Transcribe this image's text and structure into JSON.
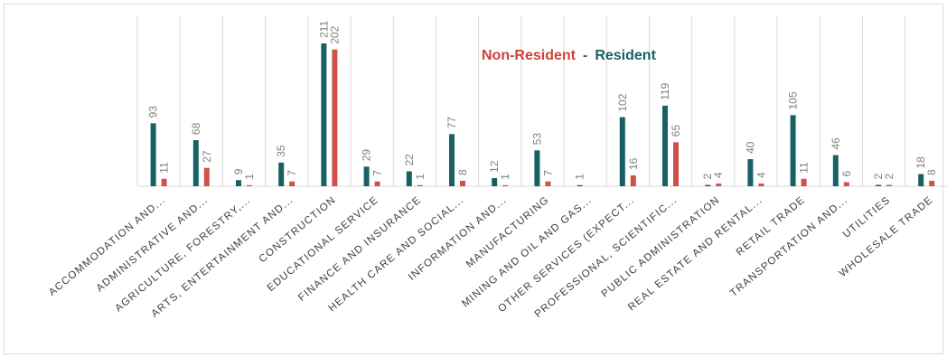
{
  "chart_data": {
    "type": "bar",
    "title": "",
    "legend": {
      "placement": "top-center",
      "separator": "-"
    },
    "categories": [
      "ACCOMMODATION AND...",
      "ADMINISTRATIVE AND...",
      "AGRICULTURE, FORESTRY,...",
      "ARTS, ENTERTAINMENT AND...",
      "CONSTRUCTION",
      "EDUCATIONAL SERVICE",
      "FINANCE AND INSURANCE",
      "HEALTH CARE AND SOCIAL...",
      "INFORMATION AND...",
      "MANUFACTURING",
      "MINING AND OIL AND GAS...",
      "OTHER SERVICES (EXPECT...",
      "PROFESSIONAL, SCIENTIFIC...",
      "PUBLIC ADMINISTRATION",
      "REAL ESTATE AND RENTAL...",
      "RETAIL TRADE",
      "TRANSPORTATION AND...",
      "UTILITIES",
      "WHOLESALE TRADE"
    ],
    "series": [
      {
        "name": "Resident",
        "color": "#176064",
        "values": [
          93,
          68,
          9,
          35,
          211,
          29,
          22,
          77,
          12,
          53,
          1,
          102,
          119,
          2,
          40,
          105,
          46,
          2,
          18
        ]
      },
      {
        "name": "Non-Resident",
        "color": "#d0504a",
        "values": [
          11,
          27,
          1,
          7,
          202,
          7,
          1,
          8,
          1,
          7,
          null,
          16,
          65,
          4,
          4,
          11,
          6,
          2,
          8
        ]
      }
    ],
    "ylim": [
      0,
      211
    ],
    "grid": "vertical category lines",
    "xlabel": "",
    "ylabel": ""
  }
}
